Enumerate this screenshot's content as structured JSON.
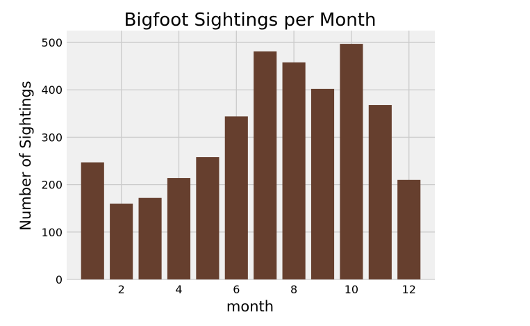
{
  "colors": {
    "bar": "#663f2e",
    "plot_background": "#f0f0f0",
    "grid": "#cbcbcb",
    "page_background": "#ffffff"
  },
  "chart_data": {
    "type": "bar",
    "title": "Bigfoot Sightings per Month",
    "xlabel": "month",
    "ylabel": "Number of Sightings",
    "x": [
      1,
      2,
      3,
      4,
      5,
      6,
      7,
      8,
      9,
      10,
      11,
      12
    ],
    "values": [
      247,
      160,
      172,
      214,
      258,
      344,
      481,
      458,
      402,
      497,
      368,
      210
    ],
    "xlim": [
      0.1,
      12.9
    ],
    "ylim": [
      0,
      525
    ],
    "xticks": [
      "2",
      "4",
      "6",
      "8",
      "10",
      "12"
    ],
    "yticks": [
      "0",
      "100",
      "200",
      "300",
      "400",
      "500"
    ],
    "grid": true,
    "legend": "none"
  }
}
